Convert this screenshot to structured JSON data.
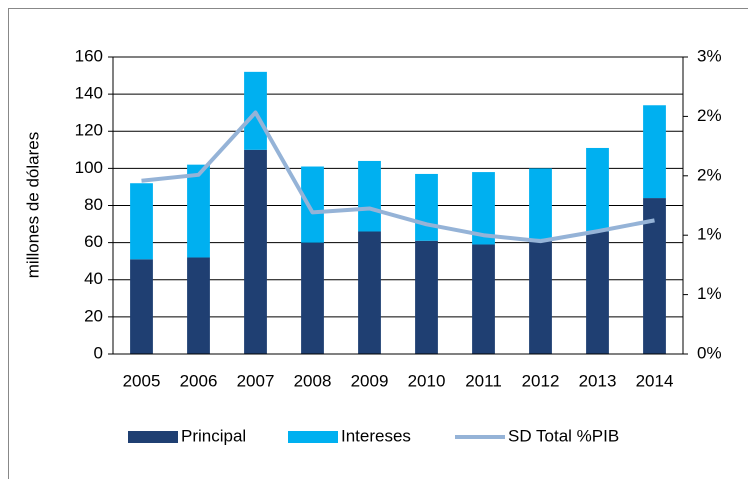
{
  "chart_data": {
    "type": "stacked-bar-line",
    "y_label": "millones de dólares",
    "categories": [
      "2005",
      "2006",
      "2007",
      "2008",
      "2009",
      "2010",
      "2011",
      "2012",
      "2013",
      "2014"
    ],
    "series": [
      {
        "name": "Principal",
        "color": "#1f3f72",
        "type": "bar",
        "values": [
          51,
          52,
          110,
          60,
          66,
          61,
          59,
          62,
          66,
          84
        ]
      },
      {
        "name": "Intereses",
        "color": "#00b0f0",
        "type": "bar",
        "values": [
          41,
          50,
          42,
          41,
          38,
          36,
          39,
          38,
          45,
          50
        ]
      },
      {
        "name": "SD Total %PIB",
        "color": "#95b3d7",
        "type": "line",
        "axis": "y2",
        "values": [
          1.75,
          1.81,
          2.44,
          1.43,
          1.47,
          1.31,
          1.2,
          1.14,
          1.24,
          1.35
        ]
      }
    ],
    "ylim": [
      0,
      160
    ],
    "yticks": [
      0,
      20,
      40,
      60,
      80,
      100,
      120,
      140,
      160
    ],
    "y2lim": [
      0,
      3
    ],
    "y2ticks": [
      {
        "value": 0,
        "label": "0%"
      },
      {
        "value": 0.6,
        "label": "1%"
      },
      {
        "value": 1.2,
        "label": "1%"
      },
      {
        "value": 1.8,
        "label": "2%"
      },
      {
        "value": 2.4,
        "label": "2%"
      },
      {
        "value": 3,
        "label": "3%"
      }
    ],
    "grid": true,
    "legend": "bottom"
  }
}
